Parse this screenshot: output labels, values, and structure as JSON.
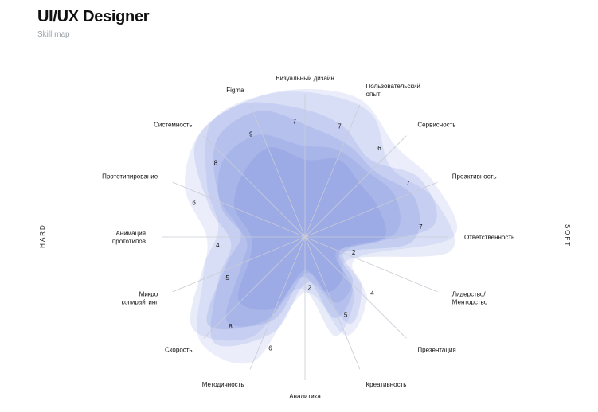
{
  "header": {
    "title": "UI/UX Designer",
    "subtitle": "Skill map"
  },
  "sides": {
    "hard": "HARD",
    "soft": "SOFT"
  },
  "colors": {
    "blob": "#8093e0",
    "axis": "#c9ccd6"
  },
  "chart_data": {
    "type": "radar",
    "title": "UI/UX Designer",
    "subtitle": "Skill map",
    "range": [
      0,
      10
    ],
    "axes": [
      [
        "Визуальный дизайн"
      ],
      [
        "Пользовательский",
        "опыт"
      ],
      [
        "Сервисность"
      ],
      [
        "Проактивность"
      ],
      [
        "Ответственность"
      ],
      [
        "Лидерство/",
        "Менторство"
      ],
      [
        "Презентация"
      ],
      [
        "Креативность"
      ],
      [
        "Аналитика"
      ],
      [
        "Методичность"
      ],
      [
        "Скорость"
      ],
      [
        "Микро",
        "копирайтинг"
      ],
      [
        "Анимация",
        "прототипов"
      ],
      [
        "Прототипирование"
      ],
      [
        "Системность"
      ],
      [
        "Figma"
      ]
    ],
    "values": [
      7,
      7,
      6,
      7,
      7,
      2,
      4,
      5,
      2,
      6,
      8,
      5,
      4,
      6,
      8,
      9
    ]
  }
}
